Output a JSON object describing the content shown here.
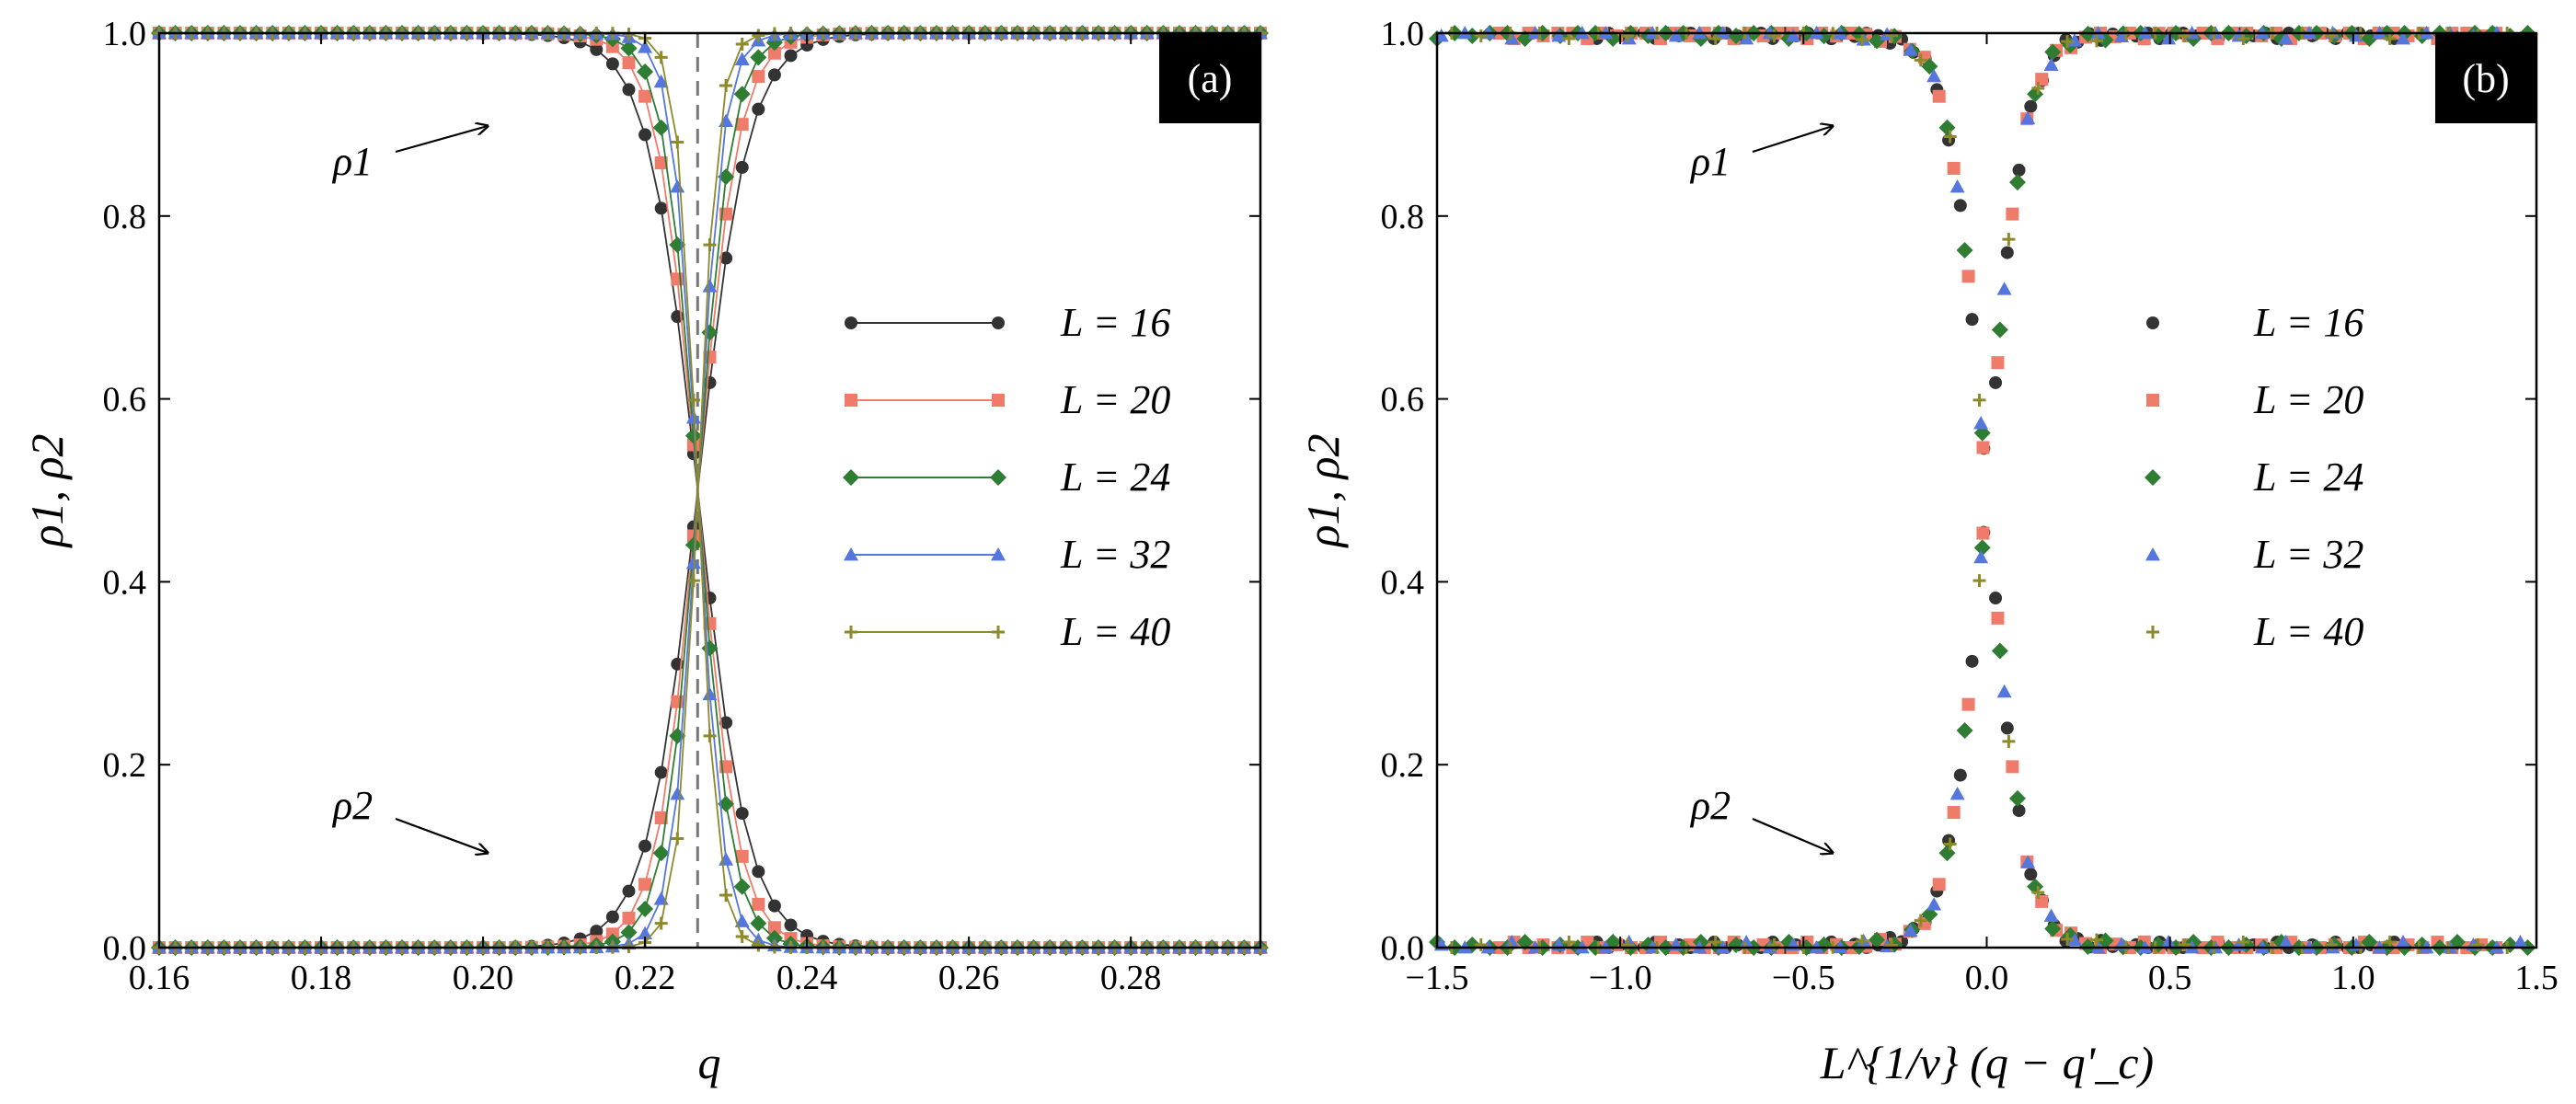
{
  "chart_data": [
    {
      "id": "a",
      "type": "line",
      "panel_label": "(a)",
      "xlabel": "q",
      "ylabel": "ρ1, ρ2",
      "xlim": [
        0.16,
        0.296
      ],
      "ylim": [
        0.0,
        1.0
      ],
      "xticks": [
        0.16,
        0.18,
        0.2,
        0.22,
        0.24,
        0.26,
        0.28
      ],
      "xtick_labels": [
        "0.16",
        "0.18",
        "0.20",
        "0.22",
        "0.24",
        "0.26",
        "0.28"
      ],
      "yticks": [
        0.0,
        0.2,
        0.4,
        0.6,
        0.8,
        1.0
      ],
      "ytick_labels": [
        "0.0",
        "0.2",
        "0.4",
        "0.6",
        "0.8",
        "1.0"
      ],
      "critical_line_x": 0.2265,
      "critical_point_y": 0.5,
      "x_step": 0.002,
      "scaling": {
        "qc": 0.2265,
        "nu": 1.0,
        "width": 0.26
      },
      "legend": {
        "position": "center-right",
        "show_lines": true
      },
      "series": [
        {
          "name": "L = 16",
          "L": 16,
          "marker": "circle",
          "color": "#333333"
        },
        {
          "name": "L = 20",
          "L": 20,
          "marker": "square",
          "color": "#ef7b6b"
        },
        {
          "name": "L = 24",
          "L": 24,
          "marker": "diamond",
          "color": "#2e7d32"
        },
        {
          "name": "L = 32",
          "L": 32,
          "marker": "triangle",
          "color": "#5577dd"
        },
        {
          "name": "L = 40",
          "L": 40,
          "marker": "plus",
          "color": "#8d8a2a"
        }
      ],
      "annotations": [
        {
          "label": "ρ1",
          "curve": "rho1"
        },
        {
          "label": "ρ2",
          "curve": "rho2"
        }
      ]
    },
    {
      "id": "b",
      "type": "scatter",
      "panel_label": "(b)",
      "xlabel": "L^{1/ν} (q − q'_c)",
      "ylabel": "ρ1, ρ2",
      "xlim": [
        -1.5,
        1.5
      ],
      "ylim": [
        0.0,
        1.0
      ],
      "xticks": [
        -1.5,
        -1.0,
        -0.5,
        0.0,
        0.5,
        1.0,
        1.5
      ],
      "xtick_labels": [
        "−1.5",
        "−1.0",
        "−0.5",
        "0.0",
        "0.5",
        "1.0",
        "1.5"
      ],
      "yticks": [
        0.0,
        0.2,
        0.4,
        0.6,
        0.8,
        1.0
      ],
      "ytick_labels": [
        "0.0",
        "0.2",
        "0.4",
        "0.6",
        "0.8",
        "1.0"
      ],
      "scaling": {
        "qc": 0.2265,
        "nu": 1.0,
        "width": 0.26
      },
      "legend": {
        "position": "center-right",
        "show_lines": false
      },
      "series": [
        {
          "name": "L = 16",
          "L": 16,
          "marker": "circle",
          "color": "#333333"
        },
        {
          "name": "L = 20",
          "L": 20,
          "marker": "square",
          "color": "#ef7b6b"
        },
        {
          "name": "L = 24",
          "L": 24,
          "marker": "diamond",
          "color": "#2e7d32"
        },
        {
          "name": "L = 32",
          "L": 32,
          "marker": "triangle",
          "color": "#5577dd"
        },
        {
          "name": "L = 40",
          "L": 40,
          "marker": "plus",
          "color": "#8d8a2a"
        }
      ],
      "annotations": [
        {
          "label": "ρ1",
          "curve": "rho1"
        },
        {
          "label": "ρ2",
          "curve": "rho2"
        }
      ]
    }
  ]
}
